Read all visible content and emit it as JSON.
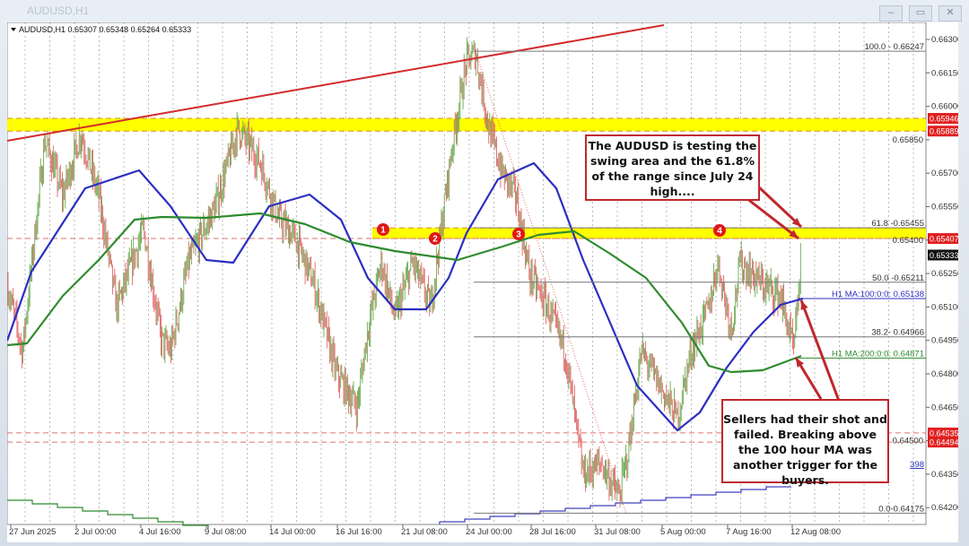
{
  "window": {
    "title": "AUDUSD,H1",
    "buttons": [
      "minimize",
      "restore",
      "close"
    ]
  },
  "chart_data": {
    "type": "candlestick",
    "symbol_header": "AUDUSD,H1",
    "ohlc_header": "0.65307 0.65348 0.65264 0.65333",
    "y_axis": {
      "min": 0.6415,
      "max": 0.6635,
      "ticks": [
        "0.66300",
        "0.66150",
        "0.66000",
        "0.65850",
        "0.65700",
        "0.65550",
        "0.65400",
        "0.65250",
        "0.65100",
        "0.64950",
        "0.64800",
        "0.64650",
        "0.64500",
        "0.64350",
        "0.64200"
      ]
    },
    "x_ticks": [
      "27 Jun 2025",
      "2 Jul 00:00",
      "4 Jul 16:00",
      "9 Jul 08:00",
      "14 Jul 00:00",
      "16 Jul 16:00",
      "21 Jul 08:00",
      "24 Jul 00:00",
      "28 Jul 16:00",
      "31 Jul 08:00",
      "5 Aug 00:00",
      "7 Aug 16:00",
      "12 Aug 08:00"
    ],
    "grid": "vertical dotted",
    "colors": {
      "bull": "#6aa84f",
      "bear": "#e06666",
      "ma100": "#2b2fc0",
      "ma200": "#2e8b2e",
      "trendline": "#d22b2b",
      "zone": "#ffff00"
    },
    "zones": [
      {
        "top": 0.65946,
        "bottom": 0.65889
      },
      {
        "top": 0.65455,
        "bottom": 0.65407
      }
    ],
    "fib_levels": [
      {
        "label": "100.0 - 0.66247",
        "price": 0.66247
      },
      {
        "label": "61.8 -0.65455",
        "price": 0.65455
      },
      {
        "label": "50.0 -0.65211",
        "price": 0.65211
      },
      {
        "label": "38.2- 0.64966",
        "price": 0.64966
      },
      {
        "label": "0.0-0.64175",
        "price": 0.64175
      }
    ],
    "ma_labels": [
      {
        "label": "H1 MA:100:0:0: 0.65138",
        "price": 0.65138,
        "color": "#2b2fc0"
      },
      {
        "label": "H1 MA:200:0:0: 0.64871",
        "price": 0.64871,
        "color": "#2e8b2e"
      }
    ],
    "partial_label": "398",
    "price_tags": [
      {
        "text": "0.65946",
        "price": 0.65946,
        "color": "#e02020"
      },
      {
        "text": "0.65889",
        "price": 0.65889,
        "color": "#e02020"
      },
      {
        "text": "0.65407",
        "price": 0.65407,
        "color": "#e02020"
      },
      {
        "text": "0.65333",
        "price": 0.65333,
        "color": "#111111"
      },
      {
        "text": "0.64535",
        "price": 0.64535,
        "color": "#e02020"
      },
      {
        "text": "0.64494",
        "price": 0.64494,
        "color": "#e02020"
      }
    ],
    "markers": [
      "1",
      "2",
      "3",
      "4"
    ]
  },
  "annotations": {
    "box1": "The AUDUSD is testing the swing area and the 61.8% of the range since July 24 high....",
    "box2": "Sellers had their shot and failed. Breaking above the 100 hour MA was another trigger for the buyers."
  }
}
